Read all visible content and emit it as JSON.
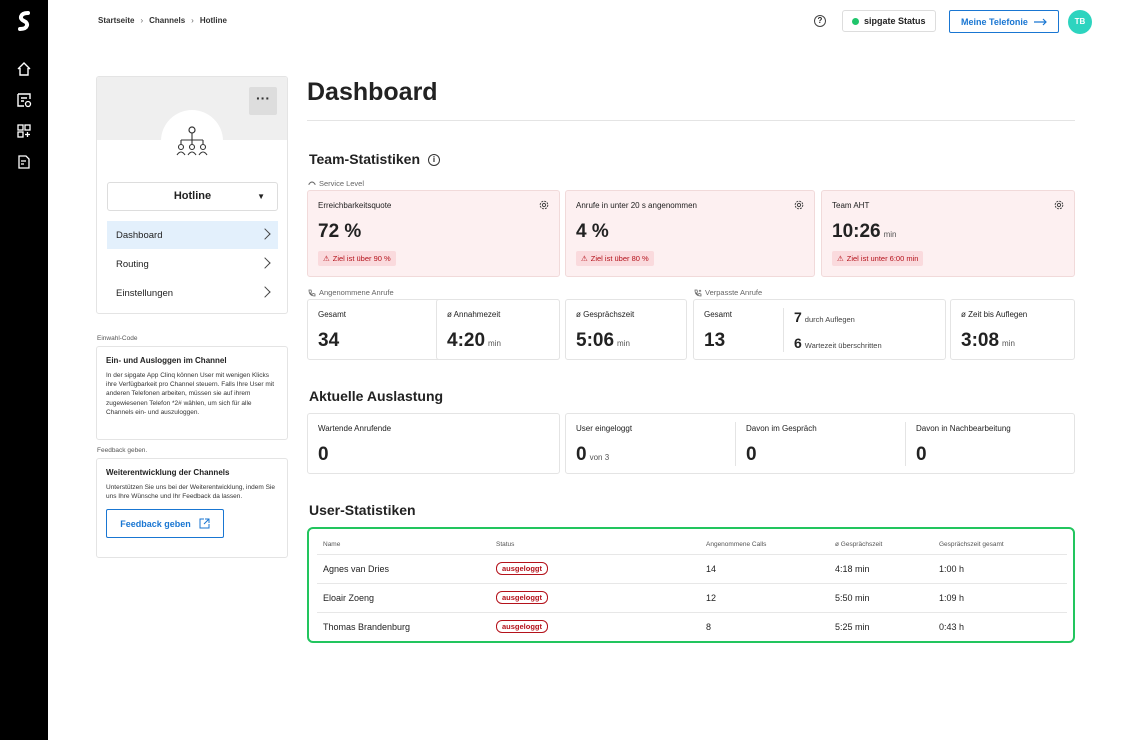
{
  "breadcrumb": [
    "Startseite",
    "Channels",
    "Hotline"
  ],
  "header": {
    "help_label": "?",
    "status_label": "sipgate Status",
    "telefonie_label": "Meine Telefonie",
    "avatar_initials": "TB"
  },
  "sidebar": {
    "channel_name": "Hotline",
    "nav": [
      {
        "label": "Dashboard"
      },
      {
        "label": "Routing"
      },
      {
        "label": "Einstellungen"
      }
    ],
    "einwahl": {
      "caption": "Einwahl-Code",
      "title": "Ein- und Ausloggen im Channel",
      "text": "In der sipgate App Clinq können User mit wenigen Klicks ihre Verfügbarkeit pro Channel steuern. Falls Ihre User mit anderen Telefonen arbeiten, müssen sie auf ihrem zugewiesenen Telefon *2# wählen, um sich für alle Channels ein- und auszuloggen."
    },
    "feedback": {
      "caption": "Feedback geben.",
      "title": "Weiterentwicklung der Channels",
      "text": "Unterstützen Sie uns bei der Weiterentwicklung, indem Sie uns Ihre Wünsche und Ihr Feedback da lassen.",
      "button": "Feedback geben"
    }
  },
  "main": {
    "title": "Dashboard",
    "team_title": "Team-Statistiken",
    "info_label": "i",
    "service_level_label": "Service Level",
    "service": [
      {
        "label": "Erreichbarkeitsquote",
        "value": "72 %",
        "unit": "",
        "goal": "Ziel ist über 90 %"
      },
      {
        "label": "Anrufe in unter 20 s angenommen",
        "value": "4 %",
        "unit": "",
        "goal": "Ziel ist über 80 %"
      },
      {
        "label": "Team AHT",
        "value": "10:26",
        "unit": "min",
        "goal": "Ziel ist unter 6:00 min"
      }
    ],
    "accepted_label": "Angenommene Anrufe",
    "accepted": [
      {
        "label": "Gesamt",
        "value": "34",
        "unit": ""
      },
      {
        "label": "ø Annahmezeit",
        "value": "4:20",
        "unit": "min"
      },
      {
        "label": "ø Gesprächszeit",
        "value": "5:06",
        "unit": "min"
      }
    ],
    "missed_label": "Verpasste Anrufe",
    "missed": {
      "total_label": "Gesamt",
      "total": "13",
      "hangup_value": "7",
      "hangup_label": "durch Auflegen",
      "wait_value": "6",
      "wait_label": "Wartezeit überschritten",
      "hang_time_label": "ø Zeit bis Auflegen",
      "hang_time": "3:08",
      "hang_time_unit": "min"
    },
    "load_title": "Aktuelle Auslastung",
    "load": {
      "waiting_label": "Wartende Anrufende",
      "waiting": "0",
      "logged_label": "User eingeloggt",
      "logged": "0",
      "logged_of": "von 3",
      "in_call_label": "Davon im Gespräch",
      "in_call": "0",
      "post_label": "Davon in Nachbearbeitung",
      "post": "0"
    },
    "users_title": "User-Statistiken",
    "users_columns": [
      "Name",
      "Status",
      "Angenommene Calls",
      "ø Gesprächszeit",
      "Gesprächszeit gesamt"
    ],
    "users_rows": [
      {
        "name": "Agnes van Dries",
        "status": "ausgeloggt",
        "calls": "14",
        "avg": "4:18 min",
        "total": "1:00 h"
      },
      {
        "name": "Eloair Zoeng",
        "status": "ausgeloggt",
        "calls": "12",
        "avg": "5:50 min",
        "total": "1:09 h"
      },
      {
        "name": "Thomas Brandenburg",
        "status": "ausgeloggt",
        "calls": "8",
        "avg": "5:25 min",
        "total": "0:43 h"
      }
    ]
  },
  "colors": {
    "accent": "#1976d2",
    "alert_bg": "#fdf0f1",
    "alert_text": "#b4121b",
    "highlight": "#22c55e",
    "avatar": "#2dd4bf"
  }
}
